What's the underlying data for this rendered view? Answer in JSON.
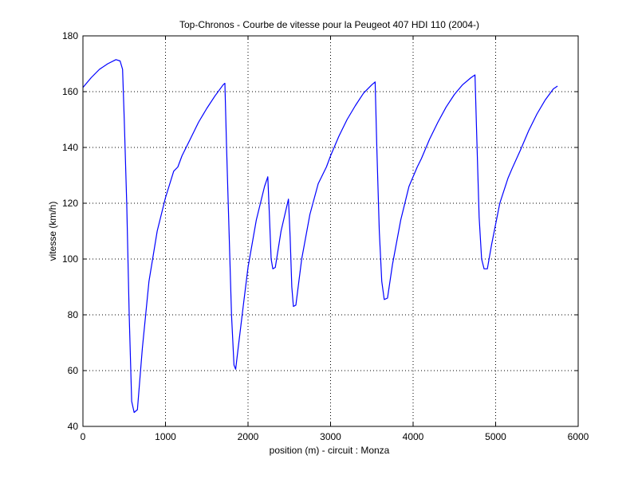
{
  "chart_data": {
    "type": "line",
    "title": "Top-Chronos - Courbe de vitesse pour la Peugeot 407 HDI 110 (2004-)",
    "xlabel": "position (m) - circuit : Monza",
    "ylabel": "vitesse (km/h)",
    "xlim": [
      0,
      6000
    ],
    "ylim": [
      40,
      180
    ],
    "xticks": [
      0,
      1000,
      2000,
      3000,
      4000,
      5000,
      6000
    ],
    "yticks": [
      40,
      60,
      80,
      100,
      120,
      140,
      160,
      180
    ],
    "grid": true,
    "series": [
      {
        "color": "#0000ff",
        "points": [
          [
            0,
            161.5
          ],
          [
            100,
            165
          ],
          [
            200,
            168
          ],
          [
            300,
            170
          ],
          [
            400,
            171.5
          ],
          [
            450,
            171
          ],
          [
            480,
            168
          ],
          [
            500,
            150
          ],
          [
            530,
            120
          ],
          [
            560,
            80
          ],
          [
            590,
            49
          ],
          [
            620,
            45
          ],
          [
            660,
            46
          ],
          [
            720,
            68
          ],
          [
            800,
            92
          ],
          [
            900,
            110
          ],
          [
            1000,
            122
          ],
          [
            1100,
            131.5
          ],
          [
            1150,
            133
          ],
          [
            1200,
            137
          ],
          [
            1300,
            143
          ],
          [
            1400,
            149
          ],
          [
            1500,
            154
          ],
          [
            1600,
            158.5
          ],
          [
            1700,
            162.5
          ],
          [
            1720,
            163
          ],
          [
            1740,
            140
          ],
          [
            1770,
            110
          ],
          [
            1800,
            80
          ],
          [
            1830,
            62
          ],
          [
            1850,
            60.5
          ],
          [
            1880,
            68
          ],
          [
            1950,
            85
          ],
          [
            2000,
            97
          ],
          [
            2100,
            114
          ],
          [
            2200,
            126
          ],
          [
            2240,
            129.5
          ],
          [
            2260,
            115
          ],
          [
            2280,
            100
          ],
          [
            2300,
            96.5
          ],
          [
            2330,
            97
          ],
          [
            2400,
            110
          ],
          [
            2490,
            121.5
          ],
          [
            2510,
            108
          ],
          [
            2530,
            90
          ],
          [
            2550,
            83
          ],
          [
            2580,
            83.5
          ],
          [
            2650,
            100
          ],
          [
            2750,
            116
          ],
          [
            2850,
            127
          ],
          [
            2950,
            133
          ],
          [
            3000,
            137
          ],
          [
            3100,
            144
          ],
          [
            3200,
            150
          ],
          [
            3300,
            155
          ],
          [
            3400,
            159.5
          ],
          [
            3500,
            162.5
          ],
          [
            3540,
            163.5
          ],
          [
            3560,
            140
          ],
          [
            3590,
            110
          ],
          [
            3620,
            92
          ],
          [
            3650,
            85.5
          ],
          [
            3690,
            86
          ],
          [
            3750,
            98
          ],
          [
            3850,
            114
          ],
          [
            3950,
            126
          ],
          [
            4050,
            133
          ],
          [
            4100,
            136
          ],
          [
            4200,
            143
          ],
          [
            4300,
            149
          ],
          [
            4400,
            154.5
          ],
          [
            4500,
            159
          ],
          [
            4600,
            162.5
          ],
          [
            4700,
            165
          ],
          [
            4750,
            166
          ],
          [
            4770,
            145
          ],
          [
            4800,
            115
          ],
          [
            4830,
            100
          ],
          [
            4860,
            96.5
          ],
          [
            4900,
            96.5
          ],
          [
            4950,
            105
          ],
          [
            5050,
            120
          ],
          [
            5150,
            129
          ],
          [
            5200,
            132.5
          ],
          [
            5300,
            139
          ],
          [
            5400,
            146
          ],
          [
            5500,
            152
          ],
          [
            5600,
            157
          ],
          [
            5700,
            161
          ],
          [
            5750,
            162
          ]
        ]
      }
    ]
  }
}
